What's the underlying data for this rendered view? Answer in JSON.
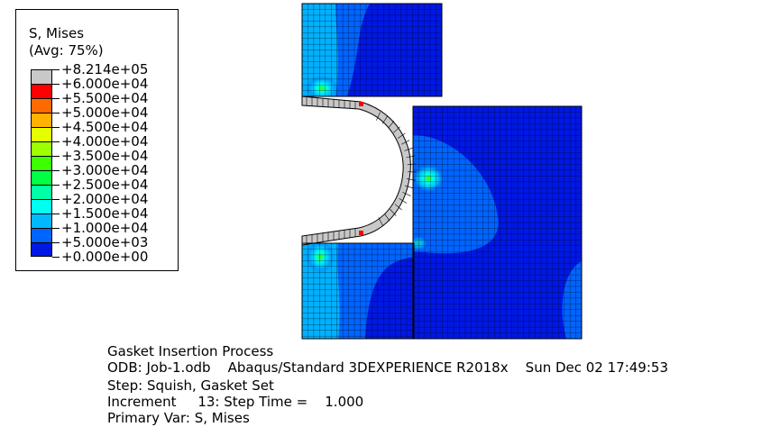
{
  "legend": {
    "title_line1": "S, Mises",
    "title_line2": "(Avg: 75%)",
    "entries": [
      {
        "value": "+8.214e+05",
        "color": "#c8c8c8"
      },
      {
        "value": "+6.000e+04",
        "color": "#ff0000"
      },
      {
        "value": "+5.500e+04",
        "color": "#ff6a00"
      },
      {
        "value": "+5.000e+04",
        "color": "#ffb300"
      },
      {
        "value": "+4.500e+04",
        "color": "#e3ff00"
      },
      {
        "value": "+4.000e+04",
        "color": "#9dff00"
      },
      {
        "value": "+3.500e+04",
        "color": "#3cff00"
      },
      {
        "value": "+3.000e+04",
        "color": "#00ff45"
      },
      {
        "value": "+2.500e+04",
        "color": "#00ffa6"
      },
      {
        "value": "+2.000e+04",
        "color": "#00fff0"
      },
      {
        "value": "+1.500e+04",
        "color": "#00b9ff"
      },
      {
        "value": "+1.000e+04",
        "color": "#0064ff"
      },
      {
        "value": "+5.000e+03",
        "color": "#0018e4"
      },
      {
        "value": "+0.000e+00",
        "color": null
      }
    ]
  },
  "info": {
    "line1": "Gasket Insertion Process",
    "line2": "ODB: Job-1.odb    Abaqus/Standard 3DEXPERIENCE R2018x    Sun Dec 02 17:49:53",
    "line3": "Step: Squish, Gasket Set",
    "line4": "Increment     13: Step Time =    1.000",
    "line5": "Primary Var: S, Mises"
  },
  "colors": {
    "base_blue": "#0018e4",
    "mid_blue": "#0064ff",
    "light_blue": "#00b9ff",
    "cyan": "#00fff0",
    "green": "#3cff00",
    "gasket": "#c8c8c8"
  }
}
